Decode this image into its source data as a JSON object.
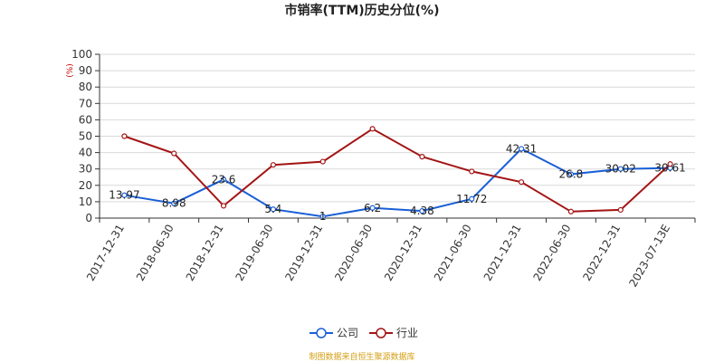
{
  "chart_data": {
    "type": "line",
    "title": "市销率(TTM)历史分位(%)",
    "unit": "(%)",
    "x": [
      "2017-12-31",
      "2018-06-30",
      "2018-12-31",
      "2019-06-30",
      "2019-12-31",
      "2020-06-30",
      "2020-12-31",
      "2021-06-30",
      "2021-12-31",
      "2022-06-30",
      "2022-12-31",
      "2023-07-13E"
    ],
    "ylim": [
      0,
      100
    ],
    "yticks": [
      "0",
      "10",
      "20",
      "30",
      "40",
      "50",
      "60",
      "70",
      "80",
      "90",
      "100"
    ],
    "grid": true,
    "legend_position": "bottom",
    "series": [
      {
        "name": "公司",
        "color": "#1a5fd6",
        "values": [
          13.97,
          8.98,
          23.6,
          5.4,
          1,
          6.2,
          4.38,
          11.72,
          42.31,
          26.8,
          30.02,
          30.61
        ],
        "labels": [
          "13.97",
          "8.98",
          "23.6",
          "5.4",
          "1",
          "6.2",
          "4.38",
          "11.72",
          "42.31",
          "26.8",
          "30.02",
          "30.61"
        ]
      },
      {
        "name": "行业",
        "color": "#a31515",
        "values": [
          50,
          39.5,
          7.5,
          32.5,
          34.5,
          54.5,
          37.5,
          28.5,
          22,
          4,
          5,
          33
        ]
      }
    ]
  },
  "source": "制图数据来自恒生聚源数据库"
}
